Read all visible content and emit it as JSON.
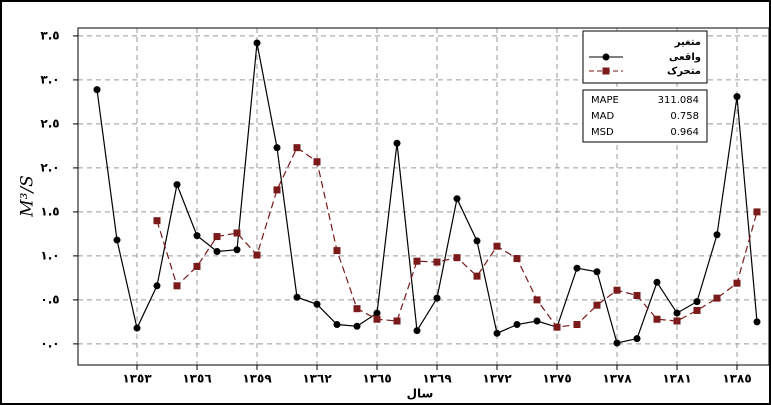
{
  "chart_data": {
    "type": "line",
    "xlabel": "سال",
    "ylabel": "M³/S",
    "categories": [
      null,
      null,
      "١٣٥٣",
      null,
      null,
      "١٣٥٦",
      null,
      null,
      "١٣٥٩",
      null,
      null,
      "١٣٦٢",
      null,
      null,
      "١٣٦٥",
      null,
      null,
      "١٣٦٩",
      null,
      null,
      "١٣٧٢",
      null,
      null,
      "١٣٧٥",
      null,
      null,
      "١٣٧٨",
      null,
      null,
      "١٣٨١",
      null,
      null,
      "١٣٨٥",
      null
    ],
    "series": [
      {
        "name": "واقعی",
        "color": "#000000",
        "marker": "circle",
        "dashed": false,
        "values": [
          2.89,
          1.18,
          0.18,
          0.66,
          1.81,
          1.23,
          1.05,
          1.07,
          3.42,
          2.23,
          0.53,
          0.45,
          0.22,
          0.2,
          0.35,
          2.28,
          0.15,
          0.52,
          1.65,
          1.17,
          0.12,
          0.22,
          0.26,
          0.19,
          0.86,
          0.82,
          0.01,
          0.06,
          0.7,
          0.35,
          0.48,
          1.24,
          2.81,
          0.25
        ]
      },
      {
        "name": "متحرک",
        "color": "#7a1a1a",
        "marker": "square",
        "dashed": true,
        "values": [
          null,
          null,
          null,
          1.4,
          0.66,
          0.88,
          1.22,
          1.26,
          1.01,
          1.75,
          2.23,
          2.07,
          1.06,
          0.4,
          0.28,
          0.26,
          0.94,
          0.93,
          0.98,
          0.77,
          1.11,
          0.97,
          0.5,
          0.19,
          0.22,
          0.44,
          0.61,
          0.55,
          0.28,
          0.26,
          0.38,
          0.52,
          0.69,
          1.5
        ]
      }
    ],
    "ylim": [
      -0.24,
      3.59
    ],
    "yticks": [
      {
        "value": 0,
        "label": "٠.٠"
      },
      {
        "value": 0.5,
        "label": "٠.٥"
      },
      {
        "value": 1,
        "label": "١.٠"
      },
      {
        "value": 1.5,
        "label": "١.٥"
      },
      {
        "value": 2,
        "label": "٢.٠"
      },
      {
        "value": 2.5,
        "label": "٢.٥"
      },
      {
        "value": 3,
        "label": "٣.٠"
      },
      {
        "value": 3.5,
        "label": "٣.٥"
      }
    ],
    "grid": true,
    "legend_title": "متغیر",
    "legend_position": "upper right",
    "stats": [
      {
        "name": "MAPE",
        "value": 311.084
      },
      {
        "name": "MAD",
        "value": 0.758
      },
      {
        "name": "MSD",
        "value": 0.964
      }
    ]
  }
}
